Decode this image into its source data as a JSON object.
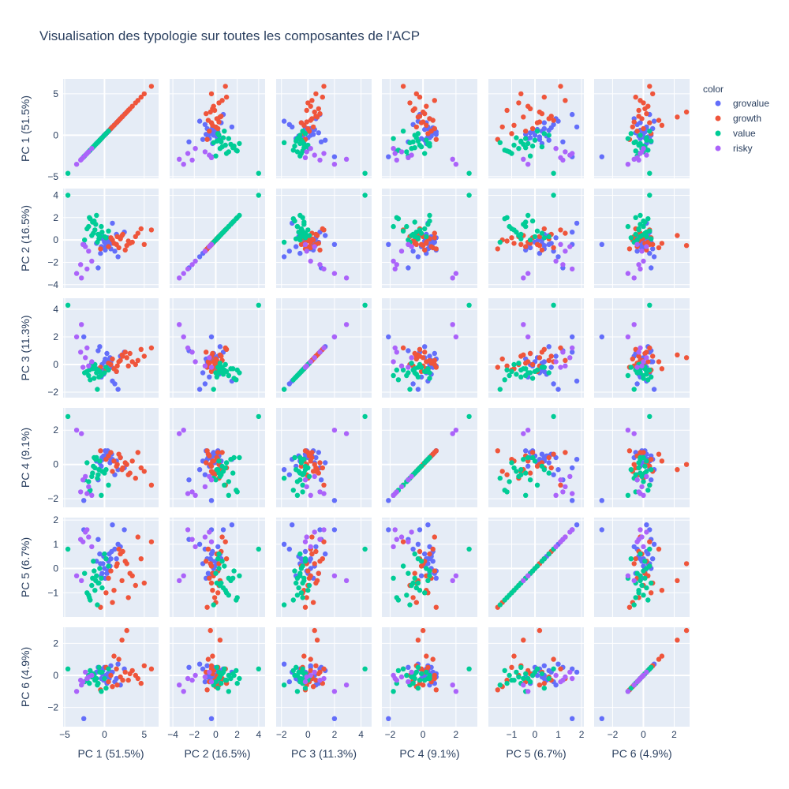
{
  "chart_data": {
    "type": "scatter",
    "title": "Visualisation des typologie sur toutes les composantes de l'ACP",
    "dimensions": [
      {
        "key": "pc1",
        "label": "PC 1 (51.5%)",
        "range": [
          -5.2,
          6.8
        ],
        "ticks": [
          -5,
          0,
          5
        ]
      },
      {
        "key": "pc2",
        "label": "PC 2 (16.5%)",
        "range": [
          -4.3,
          4.6
        ],
        "ticks": [
          -4,
          -2,
          0,
          2,
          4
        ]
      },
      {
        "key": "pc3",
        "label": "PC 3 (11.3%)",
        "range": [
          -2.4,
          4.8
        ],
        "ticks": [
          -2,
          0,
          2,
          4
        ]
      },
      {
        "key": "pc4",
        "label": "PC 4 (9.1%)",
        "range": [
          -2.5,
          3.3
        ],
        "ticks": [
          -2,
          0,
          2
        ]
      },
      {
        "key": "pc5",
        "label": "PC 5 (6.7%)",
        "range": [
          -2.0,
          2.1
        ],
        "ticks": [
          -1,
          0,
          1,
          2
        ]
      },
      {
        "key": "pc6",
        "label": "PC 6 (4.9%)",
        "range": [
          -3.2,
          3.0
        ],
        "ticks": [
          -2,
          0,
          2
        ]
      }
    ],
    "legend": {
      "title": "color",
      "position": "top-right"
    },
    "series": [
      {
        "name": "grovalue",
        "color": "#636efa",
        "points": [
          [
            1.0,
            1.5,
            -1.2,
            0.3,
            1.8,
            0.2
          ],
          [
            2.5,
            0.7,
            0.9,
            -0.2,
            1.6,
            0.4
          ],
          [
            0.5,
            0.0,
            0.1,
            0.6,
            0.3,
            -0.1
          ],
          [
            0.2,
            -0.5,
            -0.2,
            0.4,
            0.4,
            0.0
          ],
          [
            -0.2,
            0.1,
            -0.4,
            0.3,
            0.2,
            0.3
          ],
          [
            0.6,
            -0.4,
            0.3,
            0.5,
            0.6,
            -0.2
          ],
          [
            -0.5,
            -1.2,
            -0.6,
            0.2,
            0.2,
            0.4
          ],
          [
            0.3,
            -0.2,
            0.8,
            0.7,
            -0.2,
            -0.5
          ],
          [
            -1.0,
            -0.3,
            -0.3,
            0.2,
            0.3,
            0.2
          ],
          [
            0.4,
            0.2,
            -0.1,
            0.8,
            -0.1,
            0.1
          ],
          [
            0.8,
            -0.8,
            0.2,
            0.3,
            0.4,
            0.6
          ],
          [
            -0.4,
            -0.6,
            -0.9,
            -0.1,
            -0.3,
            -0.2
          ],
          [
            1.3,
            -1.0,
            -1.4,
            -0.6,
            0.8,
            -0.4
          ],
          [
            -0.8,
            -2.5,
            1.0,
            -0.9,
            1.2,
            0.5
          ],
          [
            0.7,
            -0.1,
            0.5,
            0.1,
            0.1,
            0.0
          ],
          [
            -0.1,
            0.3,
            -0.7,
            0.5,
            0.5,
            -0.3
          ],
          [
            1.7,
            -1.5,
            -1.8,
            -0.3,
            1.0,
            0.7
          ],
          [
            0.1,
            -0.9,
            0.4,
            0.8,
            -0.4,
            -0.1
          ],
          [
            -0.6,
            0.4,
            1.3,
            0.1,
            0.6,
            0.3
          ],
          [
            2.0,
            0.2,
            0.6,
            0.4,
            0.9,
            -0.6
          ],
          [
            0.9,
            -0.3,
            -0.2,
            0.6,
            0.7,
            0.2
          ],
          [
            -0.3,
            -0.7,
            0.0,
            0.4,
            -0.2,
            0.1
          ],
          [
            1.5,
            0.5,
            -0.5,
            0.2,
            0.4,
            -0.2
          ],
          [
            -2.6,
            -0.4,
            2.0,
            -2.1,
            1.6,
            -2.7
          ],
          [
            0.0,
            -0.2,
            0.2,
            0.5,
            0.0,
            0.5
          ]
        ]
      },
      {
        "name": "growth",
        "color": "#ef553b",
        "points": [
          [
            5.9,
            0.9,
            1.2,
            -1.2,
            1.1,
            0.4
          ],
          [
            5.0,
            -0.4,
            0.6,
            -0.4,
            -0.6,
            0.6
          ],
          [
            4.2,
            0.6,
            0.3,
            0.7,
            1.3,
            -0.2
          ],
          [
            3.5,
            -0.2,
            0.2,
            0.2,
            -0.3,
            0.3
          ],
          [
            2.8,
            -0.5,
            0.5,
            0.0,
            0.2,
            2.8
          ],
          [
            2.2,
            0.4,
            0.7,
            -0.3,
            -0.5,
            2.2
          ],
          [
            1.8,
            -0.7,
            0.2,
            0.6,
            0.8,
            1.0
          ],
          [
            1.2,
            -0.3,
            -0.3,
            0.2,
            -0.9,
            1.2
          ],
          [
            4.6,
            1.0,
            1.1,
            -0.2,
            0.4,
            -0.5
          ],
          [
            0.8,
            0.2,
            0.0,
            0.7,
            -0.1,
            0.0
          ],
          [
            3.0,
            -0.1,
            -0.1,
            -0.6,
            -1.2,
            -0.3
          ],
          [
            2.0,
            0.1,
            0.3,
            0.4,
            0.6,
            -0.1
          ],
          [
            1.5,
            -0.4,
            -0.5,
            -0.1,
            0.1,
            0.4
          ],
          [
            0.5,
            -0.6,
            0.1,
            0.5,
            -0.4,
            -0.4
          ],
          [
            2.6,
            -0.9,
            0.9,
            0.1,
            0.3,
            0.2
          ],
          [
            3.9,
            0.3,
            0.0,
            -0.8,
            -0.7,
            0.0
          ],
          [
            1.0,
            0.0,
            0.4,
            -0.4,
            -1.4,
            -0.7
          ],
          [
            -0.5,
            -0.8,
            -0.2,
            0.8,
            -1.6,
            -0.9
          ],
          [
            2.3,
            0.5,
            0.6,
            -0.2,
            0.7,
            -0.3
          ],
          [
            0.2,
            0.2,
            -0.4,
            0.3,
            -1.0,
            0.5
          ],
          [
            3.2,
            -0.3,
            0.8,
            -0.5,
            -0.2,
            0.1
          ],
          [
            1.6,
            0.3,
            -0.1,
            0.0,
            0.2,
            -0.6
          ]
        ]
      },
      {
        "name": "value",
        "color": "#00cc96",
        "points": [
          [
            -4.6,
            4.0,
            4.3,
            2.8,
            0.8,
            0.4
          ],
          [
            -1.5,
            1.6,
            -0.3,
            -0.5,
            -0.4,
            0.1
          ],
          [
            -1.0,
            2.2,
            -0.6,
            0.4,
            -0.3,
            -0.2
          ],
          [
            -0.8,
            0.5,
            -0.4,
            -0.6,
            -0.6,
            -0.5
          ],
          [
            -2.0,
            1.2,
            -0.8,
            -1.0,
            -1.1,
            0.0
          ],
          [
            -1.2,
            0.9,
            0.0,
            -0.2,
            -0.9,
            -0.3
          ],
          [
            -0.6,
            0.3,
            -0.5,
            0.2,
            0.0,
            0.2
          ],
          [
            -1.8,
            1.9,
            -1.1,
            -1.5,
            -1.3,
            0.3
          ],
          [
            0.2,
            0.2,
            -0.2,
            -0.3,
            0.4,
            -0.8
          ],
          [
            -2.5,
            0.0,
            -0.6,
            -0.9,
            -0.2,
            -0.4
          ],
          [
            -0.3,
            0.7,
            -0.7,
            -0.4,
            -0.8,
            0.2
          ],
          [
            -1.1,
            1.4,
            -0.3,
            0.3,
            -0.5,
            -0.2
          ],
          [
            -0.9,
            -0.2,
            -1.8,
            -0.8,
            -1.5,
            -0.6
          ],
          [
            0.5,
            0.8,
            -0.4,
            -1.2,
            0.1,
            0.4
          ],
          [
            -1.6,
            0.4,
            0.1,
            -0.7,
            -0.7,
            -0.1
          ],
          [
            -2.2,
            1.0,
            -0.5,
            0.1,
            -1.0,
            -0.3
          ],
          [
            -0.4,
            1.2,
            -0.8,
            -1.8,
            -0.4,
            -1.0
          ],
          [
            -1.4,
            0.6,
            -0.2,
            -0.1,
            0.3,
            0.1
          ],
          [
            -0.7,
            0.1,
            -0.9,
            -0.3,
            -0.6,
            0.5
          ],
          [
            -1.9,
            2.0,
            -0.4,
            -1.6,
            -1.2,
            -0.5
          ],
          [
            0.0,
            0.3,
            -0.6,
            -0.5,
            0.6,
            -0.2
          ],
          [
            -1.3,
            1.7,
            -1.0,
            0.4,
            -0.1,
            0.0
          ]
        ]
      },
      {
        "name": "risky",
        "color": "#ab63fa",
        "points": [
          [
            -3.5,
            -3.0,
            2.0,
            2.0,
            -0.3,
            -1.0
          ],
          [
            -2.9,
            -3.4,
            2.9,
            1.8,
            -0.5,
            -0.6
          ],
          [
            -3.0,
            -2.2,
            0.9,
            -1.6,
            1.2,
            -0.3
          ],
          [
            -2.0,
            -1.0,
            -0.1,
            -1.3,
            1.3,
            -0.1
          ],
          [
            -2.4,
            -0.6,
            0.5,
            -0.7,
            1.5,
            0.2
          ],
          [
            -1.6,
            -1.9,
            0.2,
            -1.8,
            0.9,
            0.0
          ],
          [
            -2.7,
            -0.4,
            -0.2,
            -0.9,
            1.1,
            -0.4
          ],
          [
            -2.2,
            -2.6,
            1.2,
            -1.7,
            1.6,
            -0.2
          ]
        ]
      }
    ]
  }
}
